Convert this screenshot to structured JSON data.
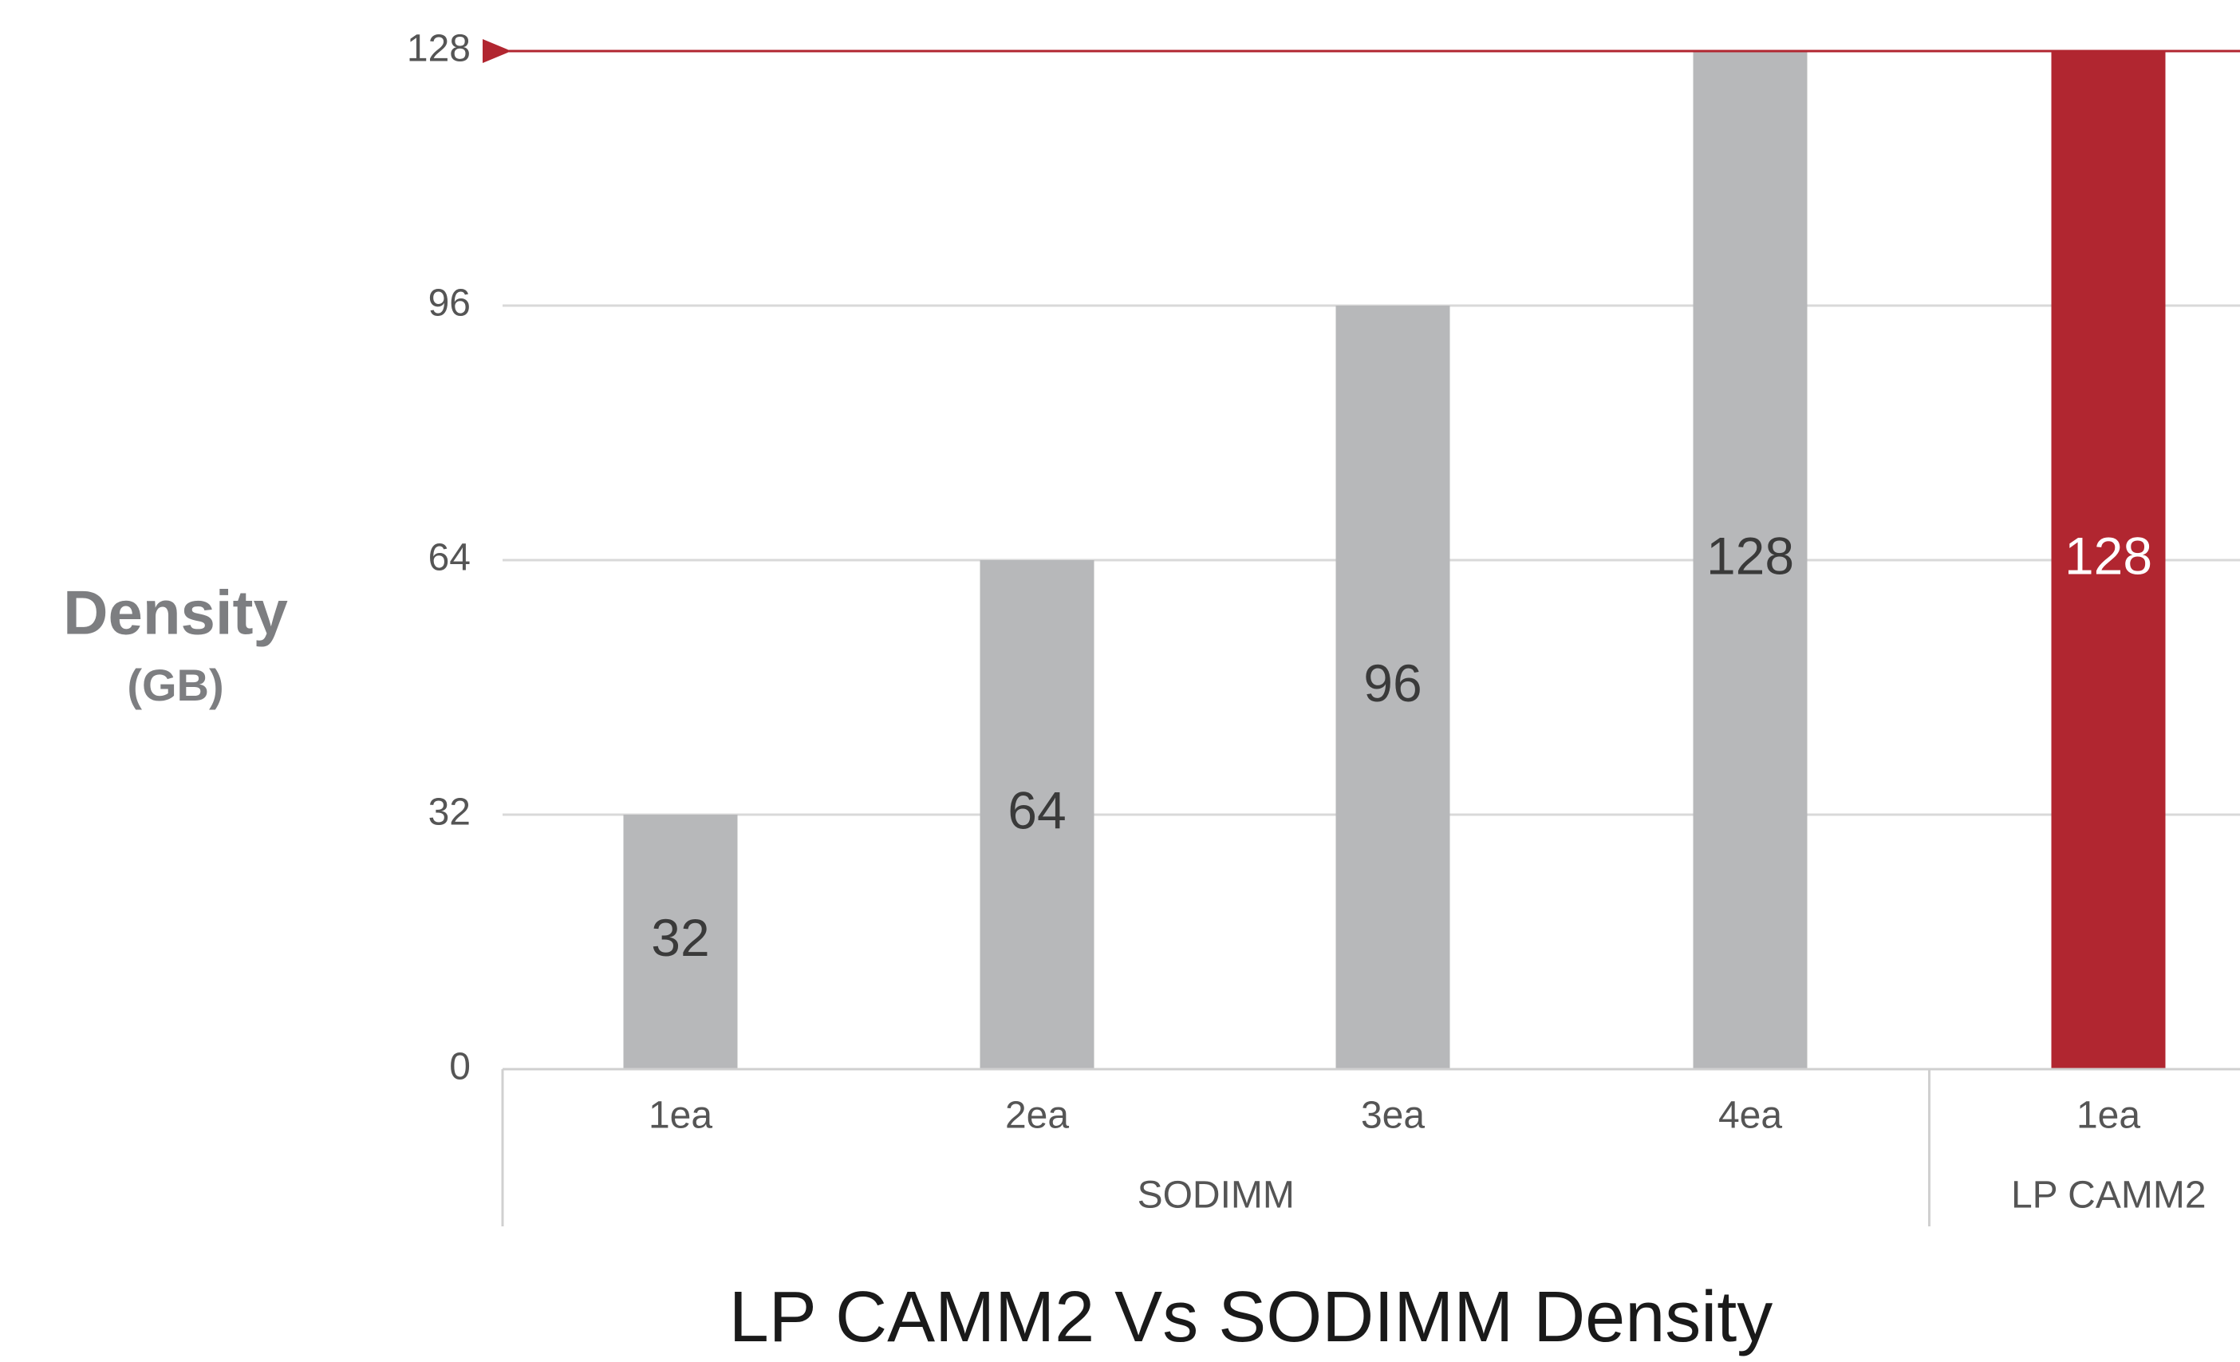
{
  "chart_data": {
    "type": "bar",
    "title": "LP CAMM2 Vs SODIMM Density",
    "ylabel": "Density",
    "ylabel_unit": "(GB)",
    "categories": [
      "1ea",
      "2ea",
      "3ea",
      "4ea",
      "1ea"
    ],
    "groups": [
      "SODIMM",
      "SODIMM",
      "SODIMM",
      "SODIMM",
      "LP CAMM2"
    ],
    "values": [
      32,
      64,
      96,
      128,
      128
    ],
    "colors": [
      "#b7b8ba",
      "#b7b8ba",
      "#b7b8ba",
      "#b7b8ba",
      "#b12630"
    ],
    "label_colors": [
      "#3a3a3a",
      "#3a3a3a",
      "#3a3a3a",
      "#3a3a3a",
      "#ffffff"
    ],
    "ylim": [
      0,
      128
    ],
    "yticks": [
      0,
      32,
      64,
      96,
      128
    ],
    "grid": true,
    "reference_line": {
      "value": 128,
      "color": "#b12630"
    }
  }
}
